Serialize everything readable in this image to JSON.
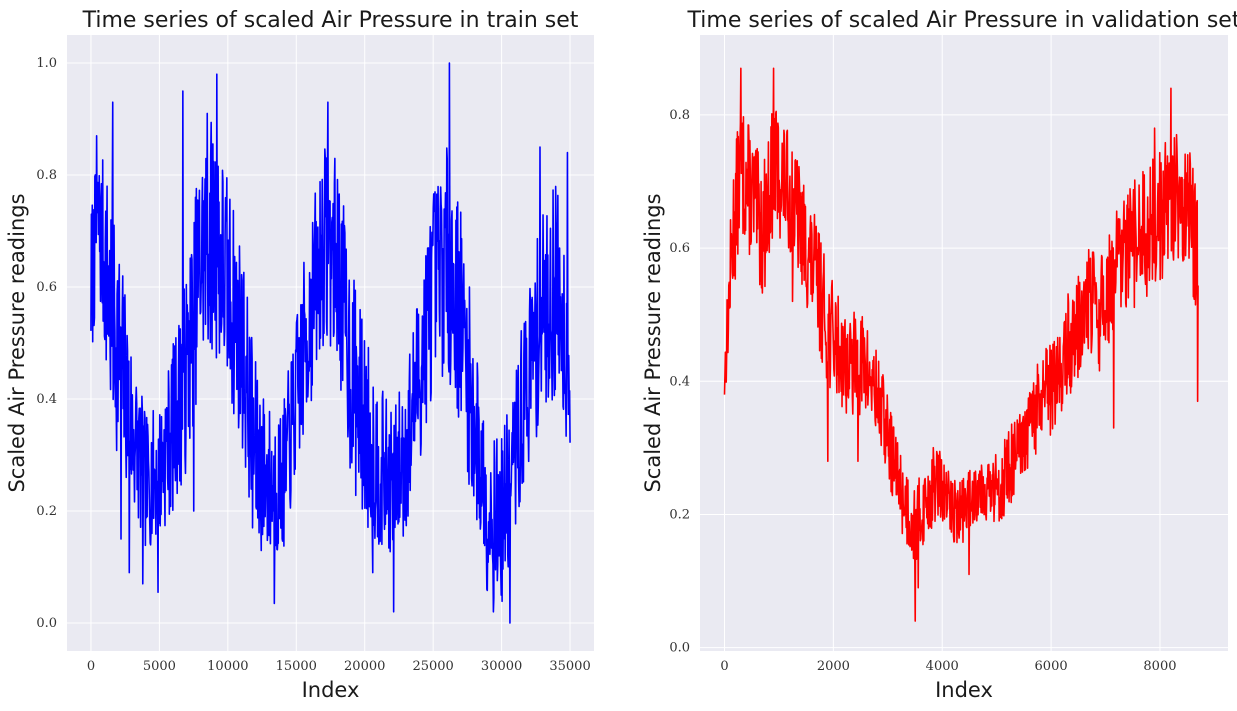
{
  "chart_data": [
    {
      "type": "line",
      "title": "Time series of scaled Air Pressure in train set",
      "xlabel": "Index",
      "ylabel": "Scaled Air Pressure readings",
      "xlim": [
        -1750,
        36750
      ],
      "ylim": [
        -0.05,
        1.05
      ],
      "xticks": [
        0,
        5000,
        10000,
        15000,
        20000,
        25000,
        30000,
        35000
      ],
      "xtick_labels": [
        "0",
        "5000",
        "10000",
        "15000",
        "20000",
        "25000",
        "30000",
        "35000"
      ],
      "yticks": [
        0.0,
        0.2,
        0.4,
        0.6,
        0.8,
        1.0
      ],
      "ytick_labels": [
        "0.0",
        "0.2",
        "0.4",
        "0.6",
        "0.8",
        "1.0"
      ],
      "grid": true,
      "background": "#eaeaf2",
      "series": [
        {
          "color": "#0000ff",
          "x": [
            0,
            500,
            1000,
            1500,
            2000,
            3000,
            4000,
            5000,
            6000,
            7000,
            8000,
            9000,
            10000,
            11000,
            12000,
            13000,
            14000,
            15000,
            16000,
            17000,
            18000,
            19000,
            20000,
            21000,
            22000,
            23000,
            24000,
            25000,
            26000,
            27000,
            28000,
            29000,
            30000,
            31000,
            32000,
            33000,
            34000,
            35000
          ],
          "y": [
            0.6,
            0.72,
            0.65,
            0.55,
            0.5,
            0.35,
            0.25,
            0.27,
            0.35,
            0.45,
            0.65,
            0.7,
            0.6,
            0.5,
            0.3,
            0.25,
            0.25,
            0.4,
            0.55,
            0.68,
            0.65,
            0.45,
            0.35,
            0.28,
            0.25,
            0.3,
            0.45,
            0.6,
            0.65,
            0.55,
            0.35,
            0.2,
            0.18,
            0.3,
            0.45,
            0.55,
            0.6,
            0.45
          ],
          "band": [
            0.15,
            0.12,
            0.18,
            0.22,
            0.2,
            0.15,
            0.12,
            0.12,
            0.15,
            0.18,
            0.2,
            0.22,
            0.2,
            0.18,
            0.17,
            0.14,
            0.13,
            0.15,
            0.17,
            0.18,
            0.18,
            0.2,
            0.18,
            0.15,
            0.13,
            0.15,
            0.17,
            0.18,
            0.2,
            0.2,
            0.17,
            0.15,
            0.15,
            0.15,
            0.17,
            0.18,
            0.2,
            0.15
          ],
          "markers_x": [
            400,
            1600,
            2200,
            2800,
            3800,
            4900,
            6700,
            7500,
            8500,
            9200,
            11800,
            13400,
            17300,
            20600,
            22100,
            26200,
            29400,
            30600,
            32800,
            34800,
            35100
          ],
          "markers_y": [
            0.87,
            0.93,
            0.15,
            0.09,
            0.07,
            0.055,
            0.95,
            0.2,
            0.91,
            0.98,
            0.17,
            0.035,
            0.93,
            0.09,
            0.02,
            1.0,
            0.02,
            0.0,
            0.85,
            0.84,
            0.35
          ]
        }
      ]
    },
    {
      "type": "line",
      "title": "Time series of scaled Air Pressure in validation set",
      "xlabel": "Index",
      "ylabel": "Scaled Air Pressure readings",
      "xlim": [
        -450,
        9250
      ],
      "ylim": [
        -0.005,
        0.92
      ],
      "xticks": [
        0,
        2000,
        4000,
        6000,
        8000
      ],
      "xtick_labels": [
        "0",
        "2000",
        "4000",
        "6000",
        "8000"
      ],
      "yticks": [
        0.0,
        0.2,
        0.4,
        0.6,
        0.8
      ],
      "ytick_labels": [
        "0.0",
        "0.2",
        "0.4",
        "0.6",
        "0.8"
      ],
      "grid": true,
      "background": "#eaeaf2",
      "series": [
        {
          "color": "#ff0000",
          "x": [
            0,
            150,
            300,
            500,
            700,
            900,
            1100,
            1300,
            1500,
            1700,
            1900,
            2100,
            2300,
            2500,
            2700,
            2900,
            3100,
            3300,
            3500,
            3700,
            3900,
            4100,
            4300,
            4500,
            4700,
            4900,
            5100,
            5300,
            5500,
            5700,
            5900,
            6100,
            6300,
            6500,
            6700,
            6900,
            7100,
            7300,
            7500,
            7700,
            7900,
            8100,
            8300,
            8500,
            8700
          ],
          "y": [
            0.4,
            0.62,
            0.72,
            0.68,
            0.62,
            0.72,
            0.7,
            0.66,
            0.6,
            0.55,
            0.48,
            0.45,
            0.42,
            0.43,
            0.4,
            0.35,
            0.28,
            0.22,
            0.18,
            0.22,
            0.25,
            0.22,
            0.2,
            0.22,
            0.25,
            0.23,
            0.25,
            0.28,
            0.3,
            0.35,
            0.38,
            0.4,
            0.45,
            0.48,
            0.52,
            0.5,
            0.55,
            0.58,
            0.6,
            0.62,
            0.64,
            0.66,
            0.68,
            0.66,
            0.6
          ],
          "band": [
            0.04,
            0.1,
            0.1,
            0.1,
            0.1,
            0.1,
            0.09,
            0.09,
            0.09,
            0.09,
            0.09,
            0.08,
            0.08,
            0.08,
            0.07,
            0.07,
            0.06,
            0.06,
            0.06,
            0.06,
            0.06,
            0.05,
            0.05,
            0.05,
            0.05,
            0.05,
            0.06,
            0.06,
            0.06,
            0.07,
            0.07,
            0.07,
            0.08,
            0.08,
            0.08,
            0.09,
            0.09,
            0.09,
            0.1,
            0.1,
            0.1,
            0.1,
            0.1,
            0.1,
            0.1
          ],
          "markers_x": [
            0,
            300,
            900,
            1250,
            1900,
            2450,
            3500,
            3560,
            4490,
            7150,
            7900,
            8200,
            8690
          ],
          "markers_y": [
            0.38,
            0.87,
            0.87,
            0.52,
            0.28,
            0.28,
            0.04,
            0.09,
            0.11,
            0.33,
            0.78,
            0.84,
            0.37
          ]
        }
      ]
    }
  ]
}
